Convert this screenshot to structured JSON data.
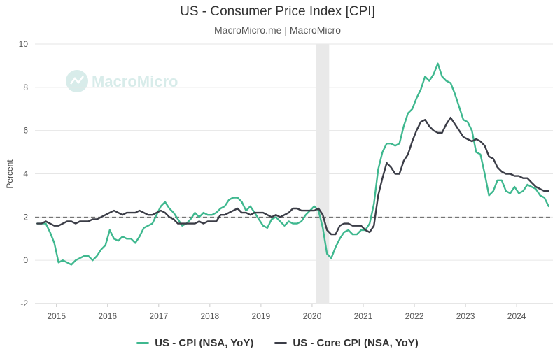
{
  "chart_data": {
    "type": "line",
    "title": "US - Consumer Price Index [CPI]",
    "subtitle": "MacroMicro.me | MacroMicro",
    "ylabel": "Percent",
    "xlabel": "",
    "ylim": [
      -2,
      10
    ],
    "y_ticks": [
      "-2",
      "0",
      "2",
      "4",
      "6",
      "8",
      "10"
    ],
    "x_ticks": [
      "2015",
      "2016",
      "2017",
      "2018",
      "2019",
      "2020",
      "2021",
      "2022",
      "2023",
      "2024"
    ],
    "reference_line": {
      "y": 2,
      "style": "dashed"
    },
    "shaded_period": [
      "2020-02",
      "2020-04"
    ],
    "grid": "horizontal",
    "legend_position": "bottom",
    "watermark": "MacroMicro",
    "x": [
      "2014-08",
      "2014-09",
      "2014-10",
      "2014-11",
      "2014-12",
      "2015-01",
      "2015-02",
      "2015-03",
      "2015-04",
      "2015-05",
      "2015-06",
      "2015-07",
      "2015-08",
      "2015-09",
      "2015-10",
      "2015-11",
      "2015-12",
      "2016-01",
      "2016-02",
      "2016-03",
      "2016-04",
      "2016-05",
      "2016-06",
      "2016-07",
      "2016-08",
      "2016-09",
      "2016-10",
      "2016-11",
      "2016-12",
      "2017-01",
      "2017-02",
      "2017-03",
      "2017-04",
      "2017-05",
      "2017-06",
      "2017-07",
      "2017-08",
      "2017-09",
      "2017-10",
      "2017-11",
      "2017-12",
      "2018-01",
      "2018-02",
      "2018-03",
      "2018-04",
      "2018-05",
      "2018-06",
      "2018-07",
      "2018-08",
      "2018-09",
      "2018-10",
      "2018-11",
      "2018-12",
      "2019-01",
      "2019-02",
      "2019-03",
      "2019-04",
      "2019-05",
      "2019-06",
      "2019-07",
      "2019-08",
      "2019-09",
      "2019-10",
      "2019-11",
      "2019-12",
      "2020-01",
      "2020-02",
      "2020-03",
      "2020-04",
      "2020-05",
      "2020-06",
      "2020-07",
      "2020-08",
      "2020-09",
      "2020-10",
      "2020-11",
      "2020-12",
      "2021-01",
      "2021-02",
      "2021-03",
      "2021-04",
      "2021-05",
      "2021-06",
      "2021-07",
      "2021-08",
      "2021-09",
      "2021-10",
      "2021-11",
      "2021-12",
      "2022-01",
      "2022-02",
      "2022-03",
      "2022-04",
      "2022-05",
      "2022-06",
      "2022-07",
      "2022-08",
      "2022-09",
      "2022-10",
      "2022-11",
      "2022-12",
      "2023-01",
      "2023-02",
      "2023-03",
      "2023-04",
      "2023-05",
      "2023-06",
      "2023-07",
      "2023-08",
      "2023-09",
      "2023-10",
      "2023-11",
      "2023-12",
      "2024-01",
      "2024-02",
      "2024-03",
      "2024-04",
      "2024-05",
      "2024-06",
      "2024-07",
      "2024-08"
    ],
    "series": [
      {
        "name": "US - CPI (NSA, YoY)",
        "color": "#3fb88f",
        "values": [
          1.7,
          1.7,
          1.7,
          1.3,
          0.8,
          -0.1,
          0.0,
          -0.1,
          -0.2,
          0.0,
          0.1,
          0.2,
          0.2,
          0.0,
          0.2,
          0.5,
          0.7,
          1.4,
          1.0,
          0.9,
          1.1,
          1.0,
          1.0,
          0.8,
          1.1,
          1.5,
          1.6,
          1.7,
          2.1,
          2.5,
          2.7,
          2.4,
          2.2,
          1.9,
          1.6,
          1.7,
          1.9,
          2.2,
          2.0,
          2.2,
          2.1,
          2.1,
          2.2,
          2.4,
          2.5,
          2.8,
          2.9,
          2.9,
          2.7,
          2.3,
          2.5,
          2.2,
          1.9,
          1.6,
          1.5,
          1.9,
          2.0,
          1.8,
          1.6,
          1.8,
          1.7,
          1.7,
          1.8,
          2.1,
          2.3,
          2.5,
          2.3,
          1.5,
          0.3,
          0.1,
          0.6,
          1.0,
          1.3,
          1.4,
          1.2,
          1.2,
          1.4,
          1.4,
          1.7,
          2.6,
          4.2,
          5.0,
          5.4,
          5.4,
          5.3,
          5.4,
          6.2,
          6.8,
          7.0,
          7.5,
          7.9,
          8.5,
          8.3,
          8.6,
          9.1,
          8.5,
          8.3,
          8.2,
          7.7,
          7.1,
          6.5,
          6.4,
          6.0,
          5.0,
          4.9,
          4.0,
          3.0,
          3.2,
          3.7,
          3.7,
          3.2,
          3.1,
          3.4,
          3.1,
          3.2,
          3.5,
          3.4,
          3.3,
          3.0,
          2.9,
          2.5
        ]
      },
      {
        "name": "US - Core CPI (NSA, YoY)",
        "color": "#3b3d47",
        "values": [
          1.7,
          1.7,
          1.8,
          1.7,
          1.6,
          1.6,
          1.7,
          1.8,
          1.8,
          1.7,
          1.8,
          1.8,
          1.8,
          1.9,
          1.9,
          2.0,
          2.1,
          2.2,
          2.3,
          2.2,
          2.1,
          2.2,
          2.2,
          2.2,
          2.3,
          2.2,
          2.1,
          2.1,
          2.2,
          2.3,
          2.2,
          2.0,
          1.9,
          1.7,
          1.7,
          1.7,
          1.7,
          1.7,
          1.8,
          1.7,
          1.8,
          1.8,
          1.8,
          2.1,
          2.1,
          2.2,
          2.3,
          2.4,
          2.2,
          2.2,
          2.1,
          2.2,
          2.2,
          2.2,
          2.1,
          2.0,
          2.1,
          2.0,
          2.1,
          2.2,
          2.4,
          2.4,
          2.3,
          2.3,
          2.3,
          2.3,
          2.4,
          2.1,
          1.4,
          1.2,
          1.2,
          1.6,
          1.7,
          1.7,
          1.6,
          1.6,
          1.6,
          1.4,
          1.3,
          1.6,
          3.0,
          3.8,
          4.5,
          4.3,
          4.0,
          4.0,
          4.6,
          4.9,
          5.5,
          6.0,
          6.4,
          6.5,
          6.2,
          6.0,
          5.9,
          5.9,
          6.3,
          6.6,
          6.3,
          6.0,
          5.7,
          5.6,
          5.5,
          5.6,
          5.5,
          5.3,
          4.8,
          4.7,
          4.3,
          4.1,
          4.0,
          4.0,
          3.9,
          3.9,
          3.8,
          3.8,
          3.6,
          3.4,
          3.3,
          3.2,
          3.2
        ]
      }
    ]
  }
}
